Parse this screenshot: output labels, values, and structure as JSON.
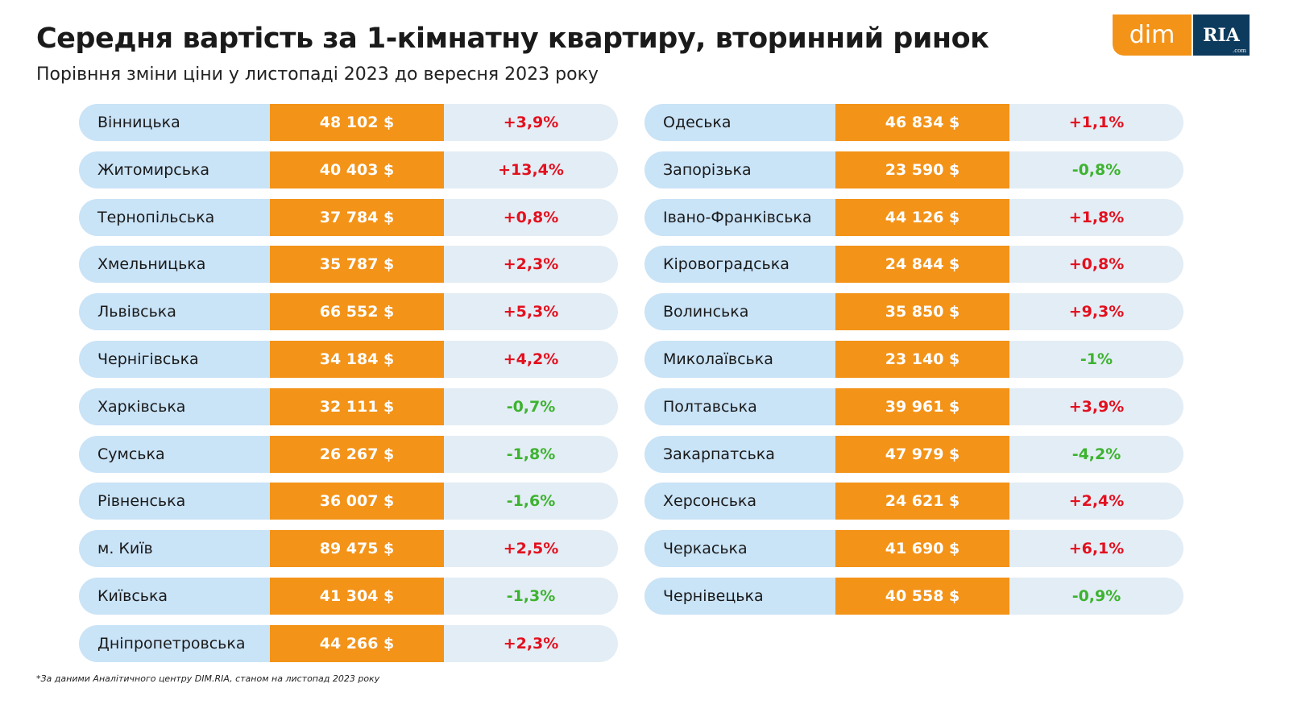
{
  "title": "Середня вартість за 1-кімнатну квартиру, вторинний ринок",
  "subtitle": "Порівння зміни ціни у листопаді 2023 до вересня 2023 року",
  "logo": {
    "dim": "dim",
    "ria": "RIA",
    "com": ".com"
  },
  "footnote": "*За даними Аналітичного центру DIM.RIA, станом на листопад 2023 року",
  "colors": {
    "price_bg": "#f39318",
    "name_bg": "#c9e3f7",
    "change_bg": "#e3edf5",
    "positive": "#e3101f",
    "negative": "#3db330"
  },
  "chart_data": {
    "type": "table",
    "columns": [
      "region",
      "price",
      "change"
    ],
    "left": [
      {
        "region": "Вінницька",
        "price": "48 102 $",
        "change": "+3,9%"
      },
      {
        "region": "Житомирська",
        "price": "40 403 $",
        "change": "+13,4%"
      },
      {
        "region": "Тернопільська",
        "price": "37 784 $",
        "change": "+0,8%"
      },
      {
        "region": "Хмельницька",
        "price": "35 787 $",
        "change": "+2,3%"
      },
      {
        "region": "Львівська",
        "price": "66 552 $",
        "change": "+5,3%"
      },
      {
        "region": "Чернігівська",
        "price": "34 184 $",
        "change": "+4,2%"
      },
      {
        "region": "Харківська",
        "price": "32 111 $",
        "change": "-0,7%"
      },
      {
        "region": "Сумська",
        "price": "26 267 $",
        "change": "-1,8%"
      },
      {
        "region": "Рівненська",
        "price": "36 007 $",
        "change": "-1,6%"
      },
      {
        "region": "м. Київ",
        "price": "89 475 $",
        "change": "+2,5%"
      },
      {
        "region": "Київська",
        "price": "41 304  $",
        "change": "-1,3%"
      },
      {
        "region": "Дніпропетровська",
        "price": "44 266 $",
        "change": "+2,3%"
      }
    ],
    "right": [
      {
        "region": "Одеська",
        "price": "46 834 $",
        "change": "+1,1%"
      },
      {
        "region": "Запорізька",
        "price": "23 590 $",
        "change": "-0,8%"
      },
      {
        "region": "Івано-Франківська",
        "price": "44 126 $",
        "change": "+1,8%"
      },
      {
        "region": "Кіровоградська",
        "price": "24 844 $",
        "change": "+0,8%"
      },
      {
        "region": "Волинська",
        "price": "35 850 $",
        "change": "+9,3%"
      },
      {
        "region": "Миколаївська",
        "price": "23 140 $",
        "change": "-1%"
      },
      {
        "region": "Полтавська",
        "price": "39 961 $",
        "change": "+3,9%"
      },
      {
        "region": "Закарпатська",
        "price": "47 979 $",
        "change": "-4,2%"
      },
      {
        "region": "Херсонська",
        "price": "24 621 $",
        "change": "+2,4%"
      },
      {
        "region": "Черкаська",
        "price": "41 690 $",
        "change": "+6,1%"
      },
      {
        "region": "Чернівецька",
        "price": "40 558 $",
        "change": "-0,9%"
      }
    ]
  }
}
